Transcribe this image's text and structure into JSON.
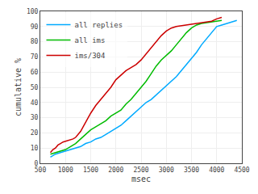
{
  "chart_data": {
    "type": "line",
    "xlabel": "msec",
    "ylabel": "cumulative %",
    "xlim": [
      500,
      4500
    ],
    "ylim": [
      0,
      100
    ],
    "xticks": [
      500,
      1000,
      1500,
      2000,
      2500,
      3000,
      3500,
      4000,
      4500
    ],
    "yticks": [
      0,
      10,
      20,
      30,
      40,
      50,
      60,
      70,
      80,
      90,
      100
    ],
    "grid": true,
    "legend": "upper left",
    "series": [
      {
        "name": "all replies",
        "color": "#00aaff",
        "x": [
          700,
          800,
          900,
          1000,
          1100,
          1200,
          1300,
          1400,
          1500,
          1600,
          1700,
          1800,
          1900,
          2000,
          2100,
          2200,
          2300,
          2400,
          2500,
          2600,
          2700,
          2800,
          2900,
          3000,
          3100,
          3200,
          3300,
          3400,
          3500,
          3600,
          3700,
          3800,
          3900,
          4000,
          4100,
          4200,
          4300,
          4400
        ],
        "values": [
          4,
          6,
          7,
          8,
          9,
          10,
          11,
          13,
          14,
          16,
          17,
          19,
          21,
          23,
          25,
          28,
          31,
          34,
          37,
          40,
          42,
          45,
          48,
          51,
          54,
          57,
          61,
          65,
          69,
          73,
          78,
          82,
          86,
          90,
          91,
          92,
          93,
          94
        ]
      },
      {
        "name": "all ims",
        "color": "#00bb00",
        "x": [
          700,
          800,
          900,
          1000,
          1100,
          1200,
          1300,
          1400,
          1500,
          1600,
          1700,
          1800,
          1900,
          2000,
          2100,
          2200,
          2300,
          2400,
          2500,
          2600,
          2700,
          2800,
          2900,
          3000,
          3100,
          3200,
          3300,
          3400,
          3500,
          3600,
          3700,
          3800,
          3900,
          4000,
          4100
        ],
        "values": [
          6,
          7,
          8,
          9,
          11,
          13,
          16,
          19,
          22,
          24,
          26,
          28,
          31,
          33,
          35,
          39,
          42,
          46,
          50,
          54,
          59,
          64,
          68,
          71,
          74,
          78,
          82,
          86,
          89,
          91,
          92,
          92.5,
          93,
          93.5,
          94
        ]
      },
      {
        "name": "ims/304",
        "color": "#cc0000",
        "x": [
          700,
          750,
          800,
          850,
          900,
          950,
          1000,
          1050,
          1100,
          1150,
          1200,
          1250,
          1300,
          1350,
          1400,
          1500,
          1600,
          1700,
          1800,
          1900,
          2000,
          2100,
          2200,
          2300,
          2400,
          2500,
          2600,
          2700,
          2800,
          2900,
          3000,
          3100,
          3200,
          3300,
          3400,
          3500,
          3600,
          3700,
          3800,
          3900,
          4000,
          4100
        ],
        "values": [
          7,
          9,
          10,
          12,
          13,
          14,
          14.5,
          15,
          15.5,
          16,
          17,
          19,
          21,
          24,
          27,
          33,
          38,
          42,
          46,
          50,
          55,
          58,
          61,
          63,
          65,
          68,
          72,
          76,
          80,
          84,
          87,
          89,
          90,
          90.5,
          91,
          91.5,
          92,
          92.5,
          93,
          93.5,
          95,
          96
        ]
      }
    ]
  }
}
